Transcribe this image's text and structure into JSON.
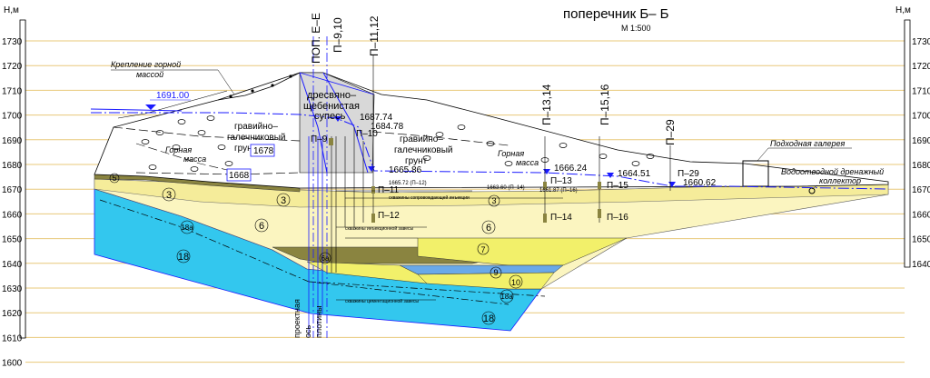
{
  "title": "поперечник  Б– Б",
  "scale": "М 1:500",
  "axis_unit": "Н,м",
  "elevations": [
    "1730",
    "1720",
    "1710",
    "1700",
    "1690",
    "1680",
    "1670",
    "1660",
    "1650",
    "1640",
    "1630",
    "1620",
    "1610",
    "1600"
  ],
  "sections": {
    "pop_ee": "ПОП. Е–Е",
    "p910": "П–9,10",
    "p1112": "П–11,12",
    "p1314": "П–13,14",
    "p1516": "П–15,16",
    "p29": "П–29"
  },
  "labels": {
    "rock_fastening_1": "Крепление горной",
    "rock_fastening_2": "массой",
    "gravel_left_1": "гравийно–",
    "gravel_left_2": "галечниковый",
    "gravel_left_3": "грунт",
    "rock_mass_left_1": "Горная",
    "rock_mass_left_2": "масса",
    "sandy_1": "дресвяно–",
    "sandy_2": "щебенистая",
    "sandy_3": "супесь",
    "gravel_right_1": "гравийно–",
    "gravel_right_2": "галечниковый",
    "gravel_right_3": "грунт",
    "rock_mass_right_1": "Горная",
    "rock_mass_right_2": "масса",
    "gallery": "Подходная галерея",
    "drain_1": "Водоотводной дренажный",
    "drain_2": "коллектор",
    "wells_accompany": "скважины сопровождающей инъекции",
    "wells_injection": "скважины инъекционной завесы",
    "wells_cement": "скважины цементационной завесы",
    "design_axis_1": "проектная",
    "design_axis_2": "ось",
    "design_axis_3": "плотины"
  },
  "water_levels": {
    "w1691": "1691.00",
    "w1687": "1687.74",
    "w1684": "1684.78",
    "w1678": "1678",
    "w1668": "1668",
    "w1665": "1665.86",
    "w1665_72": "1665.72 (П–12)",
    "w1666": "1666.24",
    "w1664": "1664.51",
    "w1663": "1663.60 (П–14)",
    "w1661": "1661.87 (П–16)",
    "w1660": "1660.62"
  },
  "piezometers": {
    "p9": "П–9",
    "p10": "П–10",
    "p11": "П–11",
    "p12": "П–12",
    "p13": "П–13",
    "p14": "П–14",
    "p15": "П–15",
    "p16": "П–16",
    "p29": "П–29"
  },
  "layers": {
    "l5": "5",
    "l3a": "3",
    "l3b": "3",
    "l6a": "6",
    "l6b": "6",
    "l18a_top": "18а",
    "l18": "18",
    "l6a2": "6а",
    "l7": "7",
    "l9": "9",
    "l10": "10",
    "l18a_bot": "18а",
    "l18_bot": "18",
    "l3c": "3"
  },
  "colors": {
    "gridline": "#e8c87a",
    "yellow_pale": "#fbf5c0",
    "yellow_bright": "#f2f06a",
    "olive_dark": "#8a8440",
    "cyan": "#33c7ee",
    "blue_line": "#1a1aff",
    "grey_core": "#d8d8d8"
  }
}
